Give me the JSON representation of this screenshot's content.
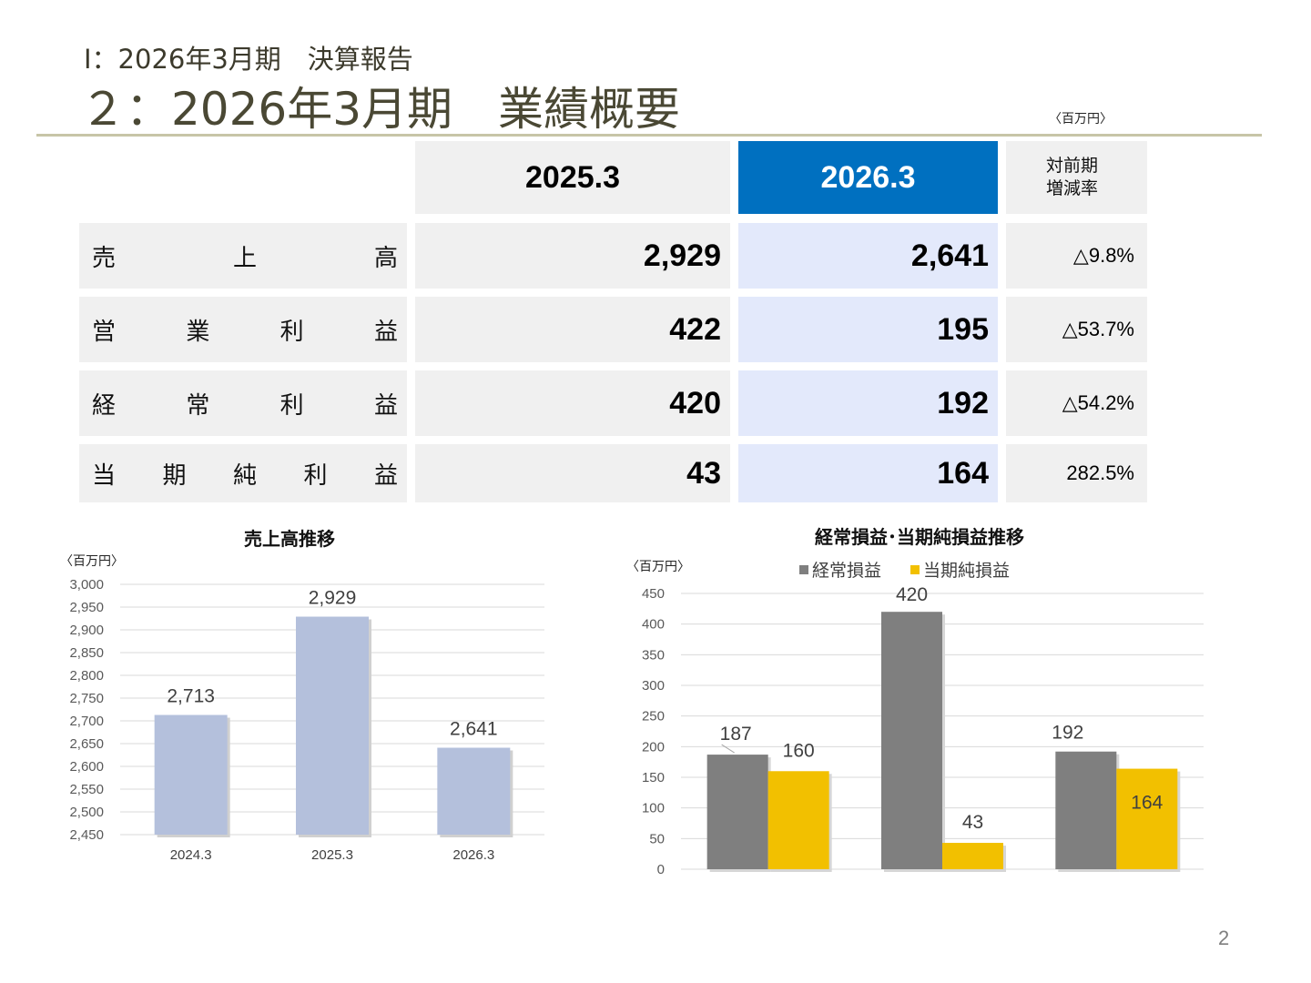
{
  "header": {
    "subtitle": "Ⅰ：2026年3月期　決算報告",
    "title": "２：2026年3月期　業績概要",
    "unit": "〈百万円〉"
  },
  "table": {
    "columns": [
      "2025.3",
      "2026.3",
      "対前期\n増減率"
    ],
    "rows": [
      {
        "label": [
          "売",
          "上",
          "高"
        ],
        "prev": "2,929",
        "curr": "2,641",
        "change": "△9.8%"
      },
      {
        "label": [
          "営",
          "業",
          "利",
          "益"
        ],
        "prev": "422",
        "curr": "195",
        "change": "△53.7%"
      },
      {
        "label": [
          "経",
          "常",
          "利",
          "益"
        ],
        "prev": "420",
        "curr": "192",
        "change": "△54.2%"
      },
      {
        "label": [
          "当",
          "期",
          "純",
          "利",
          "益"
        ],
        "prev": "43",
        "curr": "164",
        "change": "282.5%"
      }
    ],
    "colors": {
      "header_blue": "#0070c0",
      "cell_gray": "#f0f0f0",
      "cell_blue": "#e3e9fb"
    }
  },
  "chart_data": [
    {
      "type": "bar",
      "title": "売上高推移",
      "unit": "〈百万円〉",
      "categories": [
        "2024.3",
        "2025.3",
        "2026.3"
      ],
      "values": [
        2713,
        2929,
        2641
      ],
      "data_labels": [
        "2,713",
        "2,929",
        "2,641"
      ],
      "ylim": [
        2450,
        3000
      ],
      "yticks": [
        "2,450",
        "2,500",
        "2,550",
        "2,600",
        "2,650",
        "2,700",
        "2,750",
        "2,800",
        "2,850",
        "2,900",
        "2,950",
        "3,000"
      ],
      "grid": true,
      "color": "#b4c0dc"
    },
    {
      "type": "bar",
      "title": "経常損益･当期純損益推移",
      "unit": "〈百万円〉",
      "legend_position": "top",
      "series": [
        {
          "name": "経常損益",
          "values": [
            187,
            420,
            192
          ],
          "color": "#7f7f7f"
        },
        {
          "name": "当期純損益",
          "values": [
            160,
            43,
            164
          ],
          "color": "#f2c000"
        }
      ],
      "ylim": [
        0,
        450
      ],
      "yticks": [
        "0",
        "50",
        "100",
        "150",
        "200",
        "250",
        "300",
        "350",
        "400",
        "450"
      ],
      "grid": true
    }
  ],
  "page_number": "2"
}
